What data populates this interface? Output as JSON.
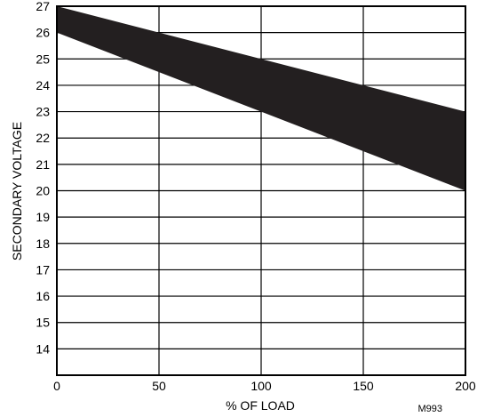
{
  "chart_data": {
    "type": "area",
    "xlabel": "% OF LOAD",
    "ylabel": "SECONDARY VOLTAGE",
    "xlim": [
      0,
      200
    ],
    "ylim": [
      13,
      27
    ],
    "x_ticks": [
      0,
      50,
      100,
      150,
      200
    ],
    "y_ticks": [
      14,
      15,
      16,
      17,
      18,
      19,
      20,
      21,
      22,
      23,
      24,
      25,
      26,
      27
    ],
    "grid": true,
    "band": {
      "x": [
        0,
        200
      ],
      "upper": [
        27,
        23
      ],
      "lower": [
        26,
        20
      ],
      "color": "#231f20"
    },
    "annotation": "M993"
  }
}
